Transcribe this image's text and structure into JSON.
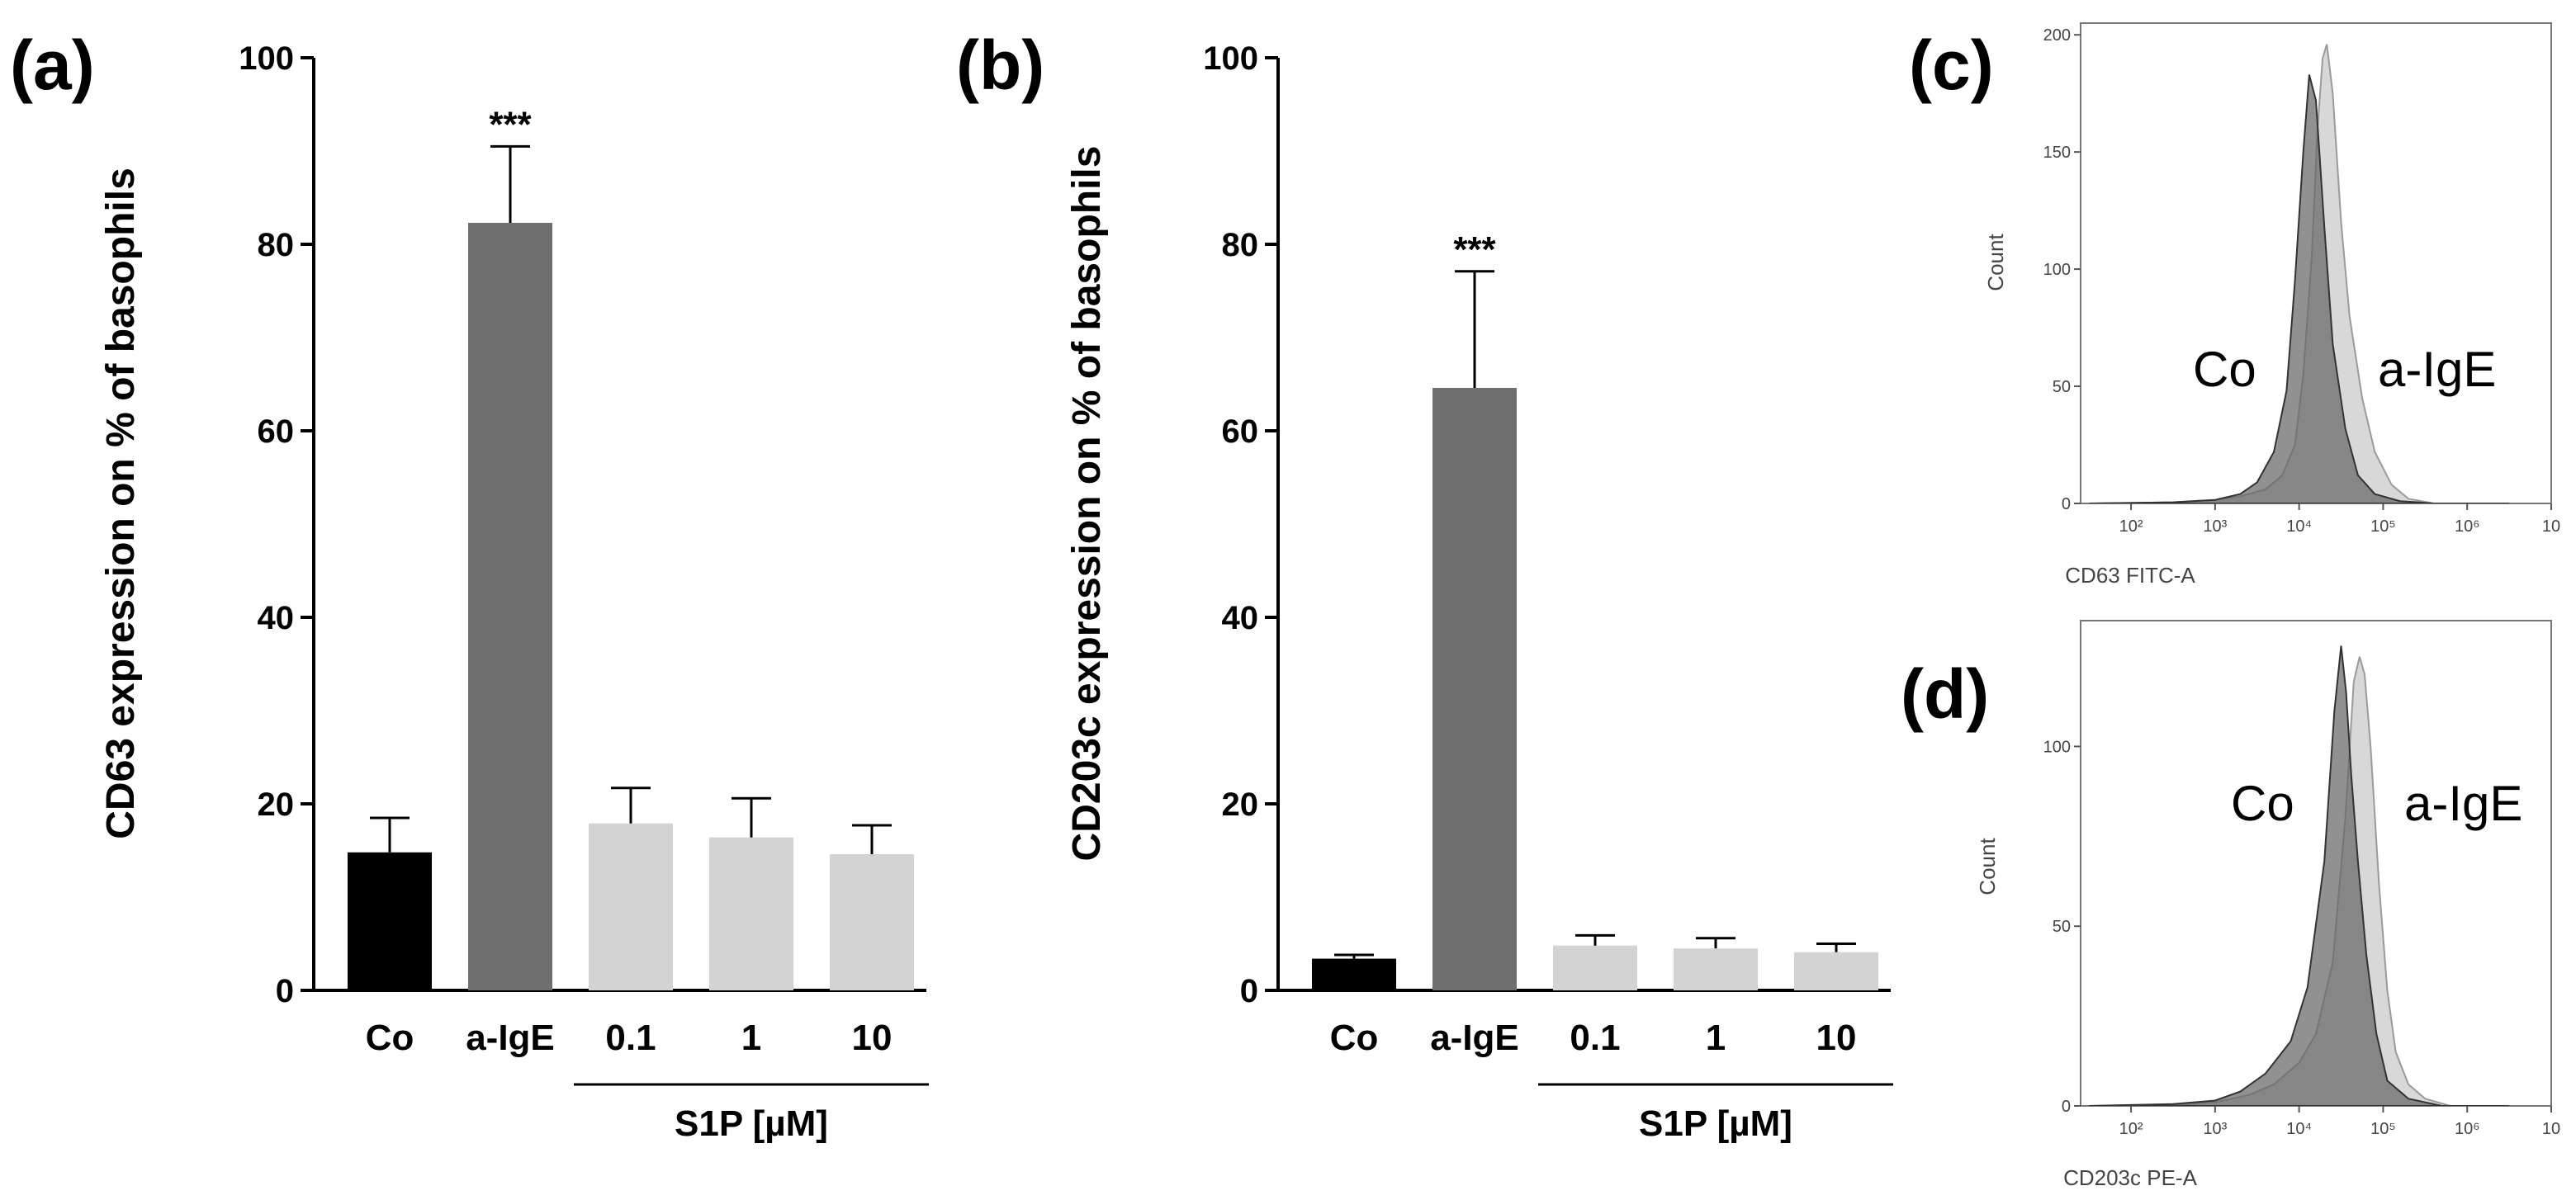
{
  "colors": {
    "control": "#000000",
    "aige": "#6e6e6e",
    "s1p": "#d3d3d3",
    "axis": "#000000",
    "hist_co": "#666666",
    "hist_aige": "#d8d8d8",
    "hist_overlap": "#8c8c8c"
  },
  "panel_labels": {
    "a": "(a)",
    "b": "(b)",
    "c": "(c)",
    "d": "(d)"
  },
  "chart_data": [
    {
      "id": "a",
      "type": "bar",
      "title": "",
      "xlabel": "",
      "ylabel": "CD63 expression on % of basophils",
      "ylim": [
        0,
        100
      ],
      "yticks": [
        0,
        20,
        40,
        60,
        80,
        100
      ],
      "categories": [
        "Co",
        "a-IgE",
        "0.1",
        "1",
        "10"
      ],
      "values": [
        14.8,
        82.3,
        17.9,
        16.4,
        14.6
      ],
      "errors": [
        3.7,
        8.2,
        3.8,
        4.2,
        3.1
      ],
      "bar_colors": [
        "control",
        "aige",
        "s1p",
        "s1p",
        "s1p"
      ],
      "significance": [
        {
          "category": "a-IgE",
          "label": "***"
        }
      ],
      "group_label": {
        "text": "S1P [µM]",
        "categories": [
          "0.1",
          "1",
          "10"
        ]
      }
    },
    {
      "id": "b",
      "type": "bar",
      "title": "",
      "xlabel": "",
      "ylabel": "CD203c expression on % of basophils",
      "ylim": [
        0,
        100
      ],
      "yticks": [
        0,
        20,
        40,
        60,
        80,
        100
      ],
      "categories": [
        "Co",
        "a-IgE",
        "0.1",
        "1",
        "10"
      ],
      "values": [
        3.4,
        64.6,
        4.8,
        4.5,
        4.1
      ],
      "errors": [
        0.4,
        12.5,
        1.1,
        1.1,
        0.9
      ],
      "bar_colors": [
        "control",
        "aige",
        "s1p",
        "s1p",
        "s1p"
      ],
      "significance": [
        {
          "category": "a-IgE",
          "label": "***"
        }
      ],
      "group_label": {
        "text": "S1P [µM]",
        "categories": [
          "0.1",
          "1",
          "10"
        ]
      }
    },
    {
      "id": "c",
      "type": "area",
      "title": "",
      "xlabel": "CD63 FITC-A",
      "ylabel": "Count",
      "xscale": "log10",
      "xlim_log10": [
        1.4,
        7
      ],
      "ylim": [
        0,
        205
      ],
      "yticks": [
        0,
        50,
        100,
        150,
        200
      ],
      "xtick_labels": [
        "10²",
        "10³",
        "10⁴",
        "10⁵",
        "10⁶",
        "10"
      ],
      "xtick_log10": [
        2,
        3,
        4,
        5,
        6,
        7
      ],
      "series": [
        {
          "name": "Co",
          "color": "hist_co",
          "x_log10": [
            1.5,
            2.5,
            3.0,
            3.3,
            3.5,
            3.7,
            3.85,
            3.95,
            4.05,
            4.12,
            4.2,
            4.3,
            4.4,
            4.55,
            4.7,
            4.9,
            5.2,
            5.6,
            6.5
          ],
          "y": [
            0,
            0.5,
            1.5,
            4,
            9,
            22,
            48,
            95,
            150,
            183,
            172,
            118,
            68,
            32,
            12,
            4,
            1,
            0,
            0
          ]
        },
        {
          "name": "a-IgE",
          "color": "hist_aige",
          "x_log10": [
            1.5,
            2.5,
            3.0,
            3.3,
            3.6,
            3.8,
            3.95,
            4.05,
            4.15,
            4.22,
            4.28,
            4.33,
            4.4,
            4.5,
            4.6,
            4.75,
            4.9,
            5.1,
            5.3,
            5.6,
            6.5
          ],
          "y": [
            0,
            0.5,
            1.5,
            3,
            6,
            12,
            25,
            55,
            105,
            160,
            190,
            196,
            175,
            120,
            80,
            45,
            22,
            8,
            2,
            0,
            0
          ]
        }
      ],
      "annotations": [
        "Co",
        "a-IgE"
      ]
    },
    {
      "id": "d",
      "type": "area",
      "title": "",
      "xlabel": "CD203c PE-A",
      "ylabel": "Count",
      "xscale": "log10",
      "xlim_log10": [
        1.4,
        7
      ],
      "ylim": [
        0,
        135
      ],
      "yticks": [
        0,
        50,
        100
      ],
      "xtick_labels": [
        "10²",
        "10³",
        "10⁴",
        "10⁵",
        "10⁶",
        "10"
      ],
      "xtick_log10": [
        2,
        3,
        4,
        5,
        6,
        7
      ],
      "series": [
        {
          "name": "Co",
          "color": "hist_co",
          "x_log10": [
            1.5,
            2.5,
            3.0,
            3.3,
            3.6,
            3.9,
            4.1,
            4.3,
            4.42,
            4.5,
            4.56,
            4.62,
            4.7,
            4.8,
            4.92,
            5.05,
            5.3,
            5.7,
            6.5
          ],
          "y": [
            0,
            0.5,
            1.5,
            4,
            9,
            18,
            33,
            68,
            110,
            128,
            115,
            92,
            68,
            42,
            20,
            7,
            2,
            0,
            0
          ]
        },
        {
          "name": "a-IgE",
          "color": "hist_aige",
          "x_log10": [
            1.5,
            2.5,
            3.0,
            3.4,
            3.7,
            4.0,
            4.2,
            4.4,
            4.55,
            4.65,
            4.72,
            4.78,
            4.85,
            4.95,
            5.05,
            5.15,
            5.3,
            5.5,
            5.8,
            6.5
          ],
          "y": [
            0,
            0.3,
            1,
            3,
            6,
            12,
            20,
            40,
            80,
            118,
            125,
            120,
            100,
            62,
            32,
            15,
            6,
            2,
            0,
            0
          ]
        }
      ],
      "annotations": [
        "Co",
        "a-IgE"
      ]
    }
  ]
}
